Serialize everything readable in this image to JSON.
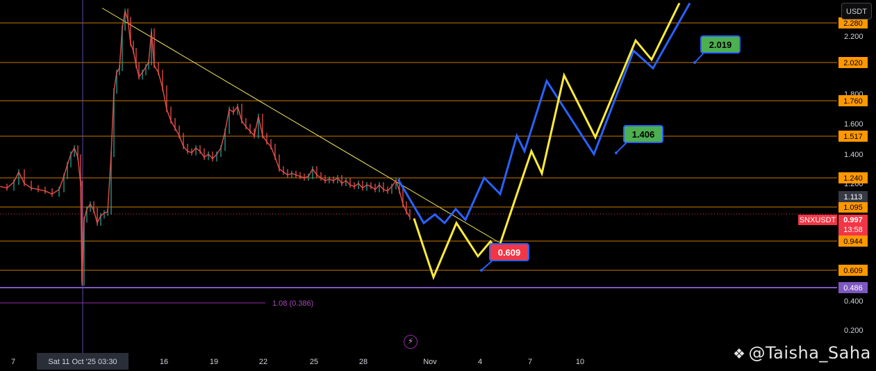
{
  "currency_button": "USDT",
  "watermark": {
    "logo": "binance-square-icon",
    "text": "@Taisha_Saha"
  },
  "chart_data": {
    "type": "line",
    "symbol": "SNXUSDT",
    "last_price": "0.997",
    "countdown": "13:58",
    "ylim": [
      0.1,
      2.38
    ],
    "y_ticks": [
      "2.200",
      "1.800",
      "1.600",
      "1.400",
      "1.200",
      "0.400",
      "0.200"
    ],
    "x_ticks": [
      "7",
      "16",
      "19",
      "22",
      "25",
      "28",
      "Nov",
      "4",
      "7",
      "10"
    ],
    "crosshair_x_label": "Sat 11 Oct '25   03:30",
    "price_levels": [
      {
        "label": "2.280",
        "value": 2.28
      },
      {
        "label": "2.020",
        "value": 2.02
      },
      {
        "label": "1.760",
        "value": 1.76
      },
      {
        "label": "1.517",
        "value": 1.517
      },
      {
        "label": "1.240",
        "value": 1.24
      },
      {
        "label": "1.095",
        "value": 1.095
      },
      {
        "label": "0.944",
        "value": 0.944
      },
      {
        "label": "0.609",
        "value": 0.609
      }
    ],
    "current_level": {
      "label": "1.113",
      "value": 1.113
    },
    "support_level": {
      "label": "0.486",
      "value": 0.486,
      "color": "#7e57c2"
    },
    "fib_label": "1.08 (0.386)",
    "fib_value": 0.386,
    "callouts": [
      {
        "label": "0.609",
        "color": "#f23645"
      },
      {
        "label": "1.406",
        "color": "#4caf50"
      },
      {
        "label": "2.019",
        "color": "#4caf50"
      }
    ],
    "price_series": [
      [
        0,
        1.18
      ],
      [
        10,
        1.17
      ],
      [
        20,
        1.21
      ],
      [
        27,
        1.28
      ],
      [
        35,
        1.2
      ],
      [
        45,
        1.17
      ],
      [
        55,
        1.16
      ],
      [
        65,
        1.15
      ],
      [
        75,
        1.13
      ],
      [
        85,
        1.16
      ],
      [
        92,
        1.25
      ],
      [
        97,
        1.33
      ],
      [
        102,
        1.4
      ],
      [
        107,
        1.44
      ],
      [
        112,
        1.38
      ],
      [
        116,
        1.2
      ],
      [
        118,
        0.52
      ],
      [
        121,
        1.0
      ],
      [
        125,
        1.08
      ],
      [
        130,
        1.1
      ],
      [
        135,
        1.07
      ],
      [
        140,
        0.99
      ],
      [
        145,
        1.03
      ],
      [
        150,
        1.05
      ],
      [
        155,
        1.06
      ],
      [
        160,
        1.4
      ],
      [
        164,
        1.82
      ],
      [
        168,
        1.95
      ],
      [
        172,
        1.98
      ],
      [
        176,
        2.25
      ],
      [
        180,
        2.35
      ],
      [
        184,
        2.3
      ],
      [
        188,
        2.15
      ],
      [
        192,
        2.1
      ],
      [
        196,
        2.0
      ],
      [
        200,
        1.92
      ],
      [
        205,
        1.95
      ],
      [
        210,
        1.99
      ],
      [
        214,
        2.02
      ],
      [
        218,
        2.23
      ],
      [
        222,
        2.0
      ],
      [
        228,
        1.95
      ],
      [
        234,
        1.84
      ],
      [
        240,
        1.7
      ],
      [
        246,
        1.62
      ],
      [
        252,
        1.57
      ],
      [
        258,
        1.52
      ],
      [
        264,
        1.45
      ],
      [
        270,
        1.42
      ],
      [
        276,
        1.41
      ],
      [
        282,
        1.44
      ],
      [
        288,
        1.42
      ],
      [
        294,
        1.38
      ],
      [
        300,
        1.4
      ],
      [
        306,
        1.37
      ],
      [
        312,
        1.4
      ],
      [
        318,
        1.44
      ],
      [
        324,
        1.55
      ],
      [
        330,
        1.7
      ],
      [
        336,
        1.68
      ],
      [
        342,
        1.72
      ],
      [
        348,
        1.62
      ],
      [
        354,
        1.58
      ],
      [
        360,
        1.55
      ],
      [
        366,
        1.52
      ],
      [
        372,
        1.65
      ],
      [
        378,
        1.52
      ],
      [
        384,
        1.48
      ],
      [
        390,
        1.45
      ],
      [
        396,
        1.38
      ],
      [
        402,
        1.3
      ],
      [
        408,
        1.28
      ],
      [
        414,
        1.26
      ],
      [
        420,
        1.27
      ],
      [
        426,
        1.26
      ],
      [
        432,
        1.25
      ],
      [
        438,
        1.24
      ],
      [
        444,
        1.25
      ],
      [
        450,
        1.3
      ],
      [
        456,
        1.26
      ],
      [
        462,
        1.24
      ],
      [
        468,
        1.22
      ],
      [
        474,
        1.23
      ],
      [
        480,
        1.22
      ],
      [
        486,
        1.24
      ],
      [
        492,
        1.2
      ],
      [
        498,
        1.22
      ],
      [
        504,
        1.19
      ],
      [
        510,
        1.18
      ],
      [
        516,
        1.2
      ],
      [
        522,
        1.17
      ],
      [
        528,
        1.19
      ],
      [
        534,
        1.18
      ],
      [
        540,
        1.16
      ],
      [
        546,
        1.19
      ],
      [
        552,
        1.16
      ],
      [
        558,
        1.15
      ],
      [
        564,
        1.18
      ],
      [
        570,
        1.22
      ],
      [
        575,
        1.15
      ],
      [
        580,
        1.1
      ],
      [
        585,
        1.06
      ],
      [
        590,
        1.02
      ]
    ],
    "trend_line": [
      [
        147,
        2.37
      ],
      [
        718,
        0.93
      ]
    ],
    "projection_blue": [
      [
        573,
        1.23
      ],
      [
        610,
        0.99
      ],
      [
        626,
        1.04
      ],
      [
        640,
        0.99
      ],
      [
        656,
        1.08
      ],
      [
        670,
        1.0
      ],
      [
        697,
        1.24
      ],
      [
        720,
        1.13
      ],
      [
        744,
        1.52
      ],
      [
        755,
        1.42
      ],
      [
        787,
        1.89
      ],
      [
        855,
        1.4
      ],
      [
        912,
        2.1
      ],
      [
        940,
        1.98
      ],
      [
        993,
        2.4
      ]
    ],
    "projection_yellow": [
      [
        596,
        1.01
      ],
      [
        624,
        0.56
      ],
      [
        657,
        0.99
      ],
      [
        688,
        0.77
      ],
      [
        706,
        0.94
      ],
      [
        716,
        0.82
      ],
      [
        765,
        1.42
      ],
      [
        780,
        1.27
      ],
      [
        812,
        1.93
      ],
      [
        857,
        1.51
      ],
      [
        915,
        2.17
      ],
      [
        938,
        2.04
      ],
      [
        978,
        2.4
      ]
    ]
  }
}
